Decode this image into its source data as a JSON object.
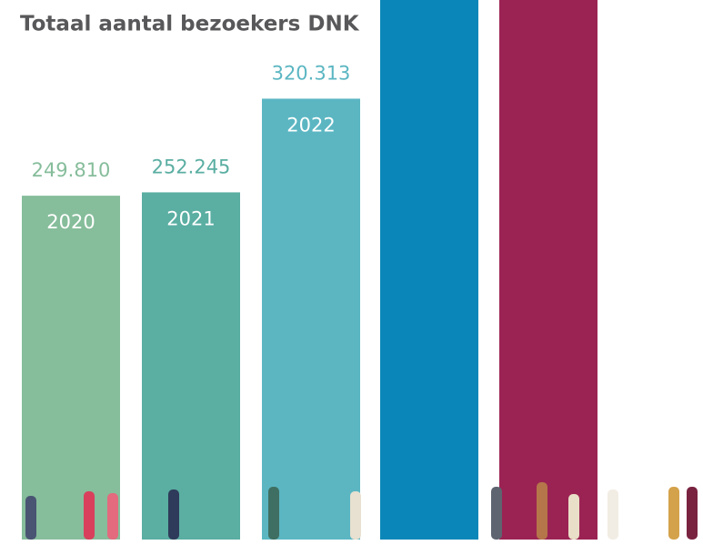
{
  "chart_data": {
    "type": "bar",
    "title": "Totaal aantal bezoekers DNK",
    "categories": [
      "2020",
      "2021",
      "2022"
    ],
    "values": [
      249810,
      252245,
      320313
    ],
    "value_labels": [
      "249.810",
      "252.245",
      "320.313"
    ],
    "colors": [
      "#86bd9b",
      "#5aaea2",
      "#5bb6c2"
    ],
    "ylim": [
      0,
      392000
    ]
  }
}
